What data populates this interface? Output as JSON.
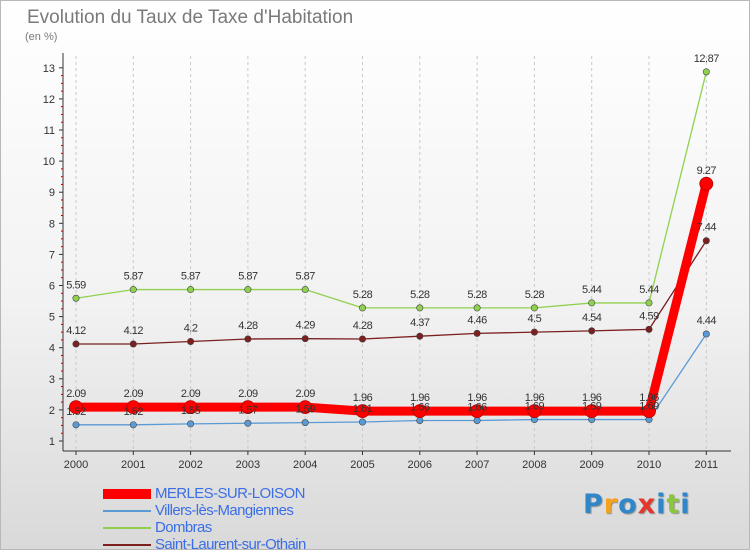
{
  "chart_data": {
    "type": "line",
    "title": "Evolution du Taux de Taxe d'Habitation",
    "unit_label": "(en %)",
    "x": [
      "2000",
      "2001",
      "2002",
      "2003",
      "2004",
      "2005",
      "2006",
      "2007",
      "2008",
      "2009",
      "2010",
      "2011"
    ],
    "ylim": [
      0,
      13
    ],
    "y_ticks": [
      1,
      2,
      3,
      4,
      5,
      6,
      7,
      8,
      9,
      10,
      11,
      12,
      13
    ],
    "series": [
      {
        "name": "MERLES-SUR-LOISON",
        "color": "#ff0000",
        "values": [
          2.09,
          2.09,
          2.09,
          2.09,
          2.09,
          1.96,
          1.96,
          1.96,
          1.96,
          1.96,
          1.96,
          9.27
        ],
        "labels": [
          "2.09",
          "2.09",
          "2.09",
          "2.09",
          "2.09",
          "1.96",
          "1.96",
          "1.96",
          "1.96",
          "1.96",
          "1.96",
          "9.27"
        ]
      },
      {
        "name": "Villers-lès-Mangiennes",
        "color": "#5b9bd5",
        "values": [
          1.52,
          1.52,
          1.55,
          1.57,
          1.59,
          1.61,
          1.66,
          1.66,
          1.69,
          1.69,
          1.69,
          4.44
        ],
        "labels": [
          "1.52",
          "1.52",
          "1.55",
          "1.57",
          "1.59",
          "1.61",
          "1.66",
          "1.66",
          "1.69",
          "1.69",
          "1.69",
          "4.44"
        ]
      },
      {
        "name": "Dombras",
        "color": "#8fd14f",
        "values": [
          5.59,
          5.87,
          5.87,
          5.87,
          5.87,
          5.28,
          5.28,
          5.28,
          5.28,
          5.44,
          5.44,
          12.87
        ],
        "labels": [
          "5.59",
          "5.87",
          "5.87",
          "5.87",
          "5.87",
          "5.28",
          "5.28",
          "5.28",
          "5.28",
          "5.44",
          "5.44",
          "12.87"
        ]
      },
      {
        "name": "Saint-Laurent-sur-Othain",
        "color": "#7b1f1f",
        "values": [
          4.12,
          4.12,
          4.2,
          4.28,
          4.29,
          4.28,
          4.37,
          4.46,
          4.5,
          4.54,
          4.59,
          7.44
        ],
        "labels": [
          "4.12",
          "4.12",
          "4.2",
          "4.28",
          "4.29",
          "4.28",
          "4.37",
          "4.46",
          "4.5",
          "4.54",
          "4.59",
          "7.44"
        ]
      }
    ]
  },
  "legend": {
    "items": [
      {
        "label": "MERLES-SUR-LOISON",
        "color": "#ff0000"
      },
      {
        "label": "Villers-lès-Mangiennes",
        "color": "#5b9bd5"
      },
      {
        "label": "Dombras",
        "color": "#8fd14f"
      },
      {
        "label": "Saint-Laurent-sur-Othain",
        "color": "#7b1f1f"
      }
    ]
  },
  "logo": {
    "letters": [
      "P",
      "r",
      "o",
      "x",
      "i",
      "t",
      "i"
    ],
    "colors": [
      "#2f86c9",
      "#f5a21c",
      "#2f86c9",
      "#e8352c",
      "#2f86c9",
      "#8cc63f",
      "#2f86c9"
    ]
  }
}
